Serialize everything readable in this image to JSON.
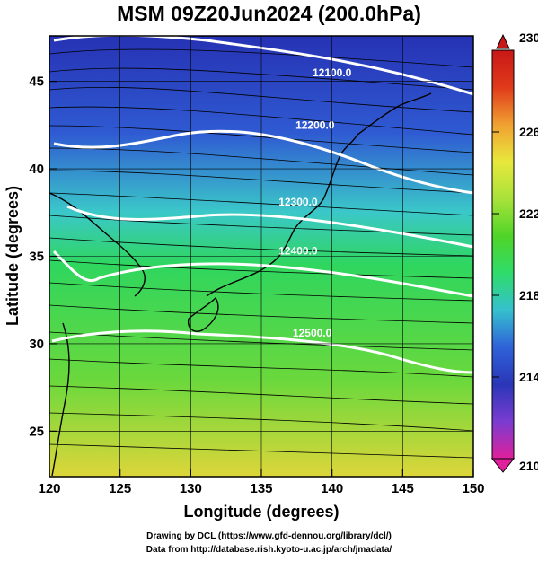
{
  "title": "MSM 09Z20Jun2024 (200.0hPa)",
  "footer": {
    "line1": "Drawing by DCL (https://www.gfd-dennou.org/library/dcl/)",
    "line2": "Data from http://database.rish.kyoto-u.ac.jp/arch/jmadata/"
  },
  "chart_data": {
    "type": "map",
    "xlabel": "Longitude (degrees)",
    "ylabel": "Latitude  (degrees)",
    "xlim": [
      120,
      150
    ],
    "ylim": [
      22.4,
      47.6
    ],
    "x_ticks": [
      "120",
      "125",
      "130",
      "135",
      "140",
      "145",
      "150"
    ],
    "y_ticks": [
      "25",
      "30",
      "35",
      "40",
      "45"
    ],
    "grid": true,
    "contours": [
      {
        "label": "12100.0",
        "label_lon": 140.0,
        "label_lat": 45.3
      },
      {
        "label": "12200.0",
        "label_lon": 138.8,
        "label_lat": 42.3
      },
      {
        "label": "12300.0",
        "label_lon": 137.6,
        "label_lat": 37.9
      },
      {
        "label": "12400.0",
        "label_lon": 137.6,
        "label_lat": 35.1
      },
      {
        "label": "12500.0",
        "label_lon": 138.6,
        "label_lat": 30.4
      }
    ],
    "colorbar": {
      "min": 210,
      "max": 230,
      "tick_labels": [
        "230",
        "226",
        "222",
        "218",
        "214",
        "210"
      ],
      "colors": [
        "#e0209c",
        "#7a3cd0",
        "#2a36b8",
        "#2f62d8",
        "#35c0ce",
        "#2fdc6a",
        "#50d428",
        "#a8e23a",
        "#e8e83c",
        "#f0a032",
        "#e03a1a",
        "#c81818"
      ]
    },
    "field_colors": [
      "#2632b4",
      "#2f5ad2",
      "#3bc8c9",
      "#2fd65e",
      "#6ad83c",
      "#ddd63a"
    ]
  }
}
